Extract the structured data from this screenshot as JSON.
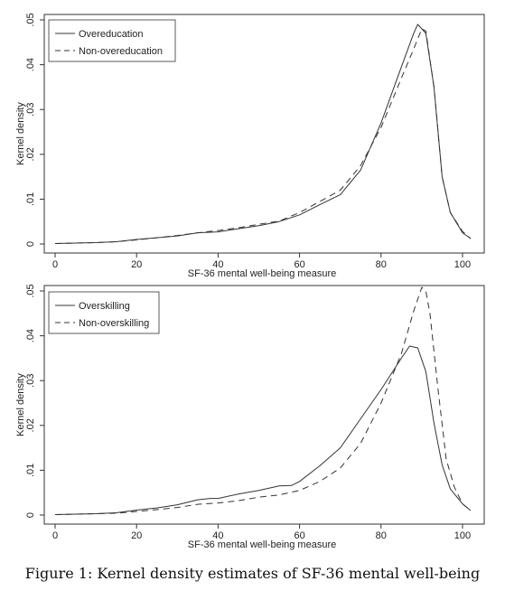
{
  "caption": "Figure 1: Kernel density estimates of SF-36 mental well-being",
  "chart_data": [
    {
      "type": "line",
      "xlabel": "SF-36 mental well-being measure",
      "ylabel": "Kernel density",
      "xlim": [
        0,
        102
      ],
      "ylim": [
        0,
        0.05
      ],
      "xticks": [
        0,
        20,
        40,
        60,
        80,
        100
      ],
      "xtick_labels": [
        "0",
        "20",
        "40",
        "60",
        "80",
        "100"
      ],
      "yticks": [
        0,
        0.01,
        0.02,
        0.03,
        0.04,
        0.05
      ],
      "ytick_labels": [
        "0",
        ".01",
        ".02",
        ".03",
        ".04",
        ".05"
      ],
      "grid": false,
      "legend_position": "top-left",
      "series": [
        {
          "name": "Overeducation",
          "style": "solid",
          "color": "#333333",
          "x": [
            0,
            5,
            10,
            15,
            20,
            25,
            30,
            35,
            40,
            45,
            50,
            55,
            60,
            65,
            70,
            75,
            80,
            85,
            88,
            89,
            91,
            93,
            95,
            97,
            100,
            102
          ],
          "y": [
            0.0001,
            0.0002,
            0.0003,
            0.0005,
            0.001,
            0.0014,
            0.0018,
            0.0025,
            0.0027,
            0.0034,
            0.0041,
            0.005,
            0.0065,
            0.0088,
            0.011,
            0.0165,
            0.027,
            0.0395,
            0.047,
            0.049,
            0.047,
            0.035,
            0.015,
            0.007,
            0.0025,
            0.0012
          ]
        },
        {
          "name": "Non-overeducation",
          "style": "dashed",
          "color": "#333333",
          "x": [
            0,
            5,
            10,
            15,
            20,
            25,
            30,
            35,
            40,
            45,
            50,
            55,
            60,
            65,
            70,
            75,
            80,
            85,
            88,
            90,
            91,
            93,
            95,
            97,
            100,
            102
          ],
          "y": [
            0.0001,
            0.0002,
            0.0003,
            0.0005,
            0.0009,
            0.0014,
            0.0019,
            0.0025,
            0.003,
            0.0036,
            0.0044,
            0.0051,
            0.007,
            0.0095,
            0.012,
            0.0175,
            0.026,
            0.037,
            0.0435,
            0.048,
            0.0475,
            0.035,
            0.015,
            0.007,
            0.0028,
            0.0012
          ]
        }
      ]
    },
    {
      "type": "line",
      "xlabel": "SF-36 mental well-being measure",
      "ylabel": "Kernel density",
      "xlim": [
        0,
        102
      ],
      "ylim": [
        0,
        0.05
      ],
      "xticks": [
        0,
        20,
        40,
        60,
        80,
        100
      ],
      "xtick_labels": [
        "0",
        "20",
        "40",
        "60",
        "80",
        "100"
      ],
      "yticks": [
        0,
        0.01,
        0.02,
        0.03,
        0.04,
        0.05
      ],
      "ytick_labels": [
        "0",
        ".01",
        ".02",
        ".03",
        ".04",
        ".05"
      ],
      "grid": false,
      "legend_position": "top-left",
      "series": [
        {
          "name": "Overskilling",
          "style": "solid",
          "color": "#333333",
          "x": [
            0,
            5,
            10,
            15,
            20,
            25,
            30,
            35,
            38,
            40,
            45,
            50,
            55,
            58,
            60,
            65,
            70,
            75,
            80,
            85,
            87,
            89,
            91,
            93,
            95,
            97,
            100,
            102
          ],
          "y": [
            0.0001,
            0.0002,
            0.0003,
            0.0005,
            0.0011,
            0.0016,
            0.0023,
            0.0034,
            0.0037,
            0.0037,
            0.0047,
            0.0055,
            0.0065,
            0.0066,
            0.0075,
            0.011,
            0.015,
            0.0215,
            0.028,
            0.035,
            0.0377,
            0.0373,
            0.032,
            0.0205,
            0.0112,
            0.0058,
            0.0025,
            0.001
          ]
        },
        {
          "name": "Non-overskilling",
          "style": "dashed",
          "color": "#333333",
          "x": [
            0,
            5,
            10,
            15,
            20,
            25,
            30,
            35,
            40,
            45,
            50,
            55,
            60,
            65,
            70,
            75,
            80,
            85,
            88,
            90,
            91,
            92,
            94,
            96,
            98,
            100,
            102
          ],
          "y": [
            0.0001,
            0.0002,
            0.0003,
            0.0004,
            0.0008,
            0.0012,
            0.0017,
            0.0024,
            0.0027,
            0.0032,
            0.004,
            0.0045,
            0.0055,
            0.0075,
            0.0105,
            0.016,
            0.025,
            0.036,
            0.0455,
            0.0508,
            0.05,
            0.045,
            0.028,
            0.0125,
            0.0062,
            0.0025,
            0.001
          ]
        }
      ]
    }
  ]
}
